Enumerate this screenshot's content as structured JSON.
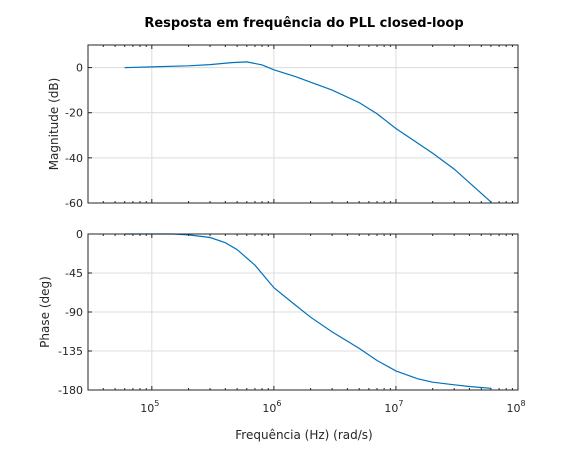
{
  "chart_data": [
    {
      "type": "line",
      "title": "Resposta em frequência do PLL closed-loop",
      "ylabel": "Magnitude (dB)",
      "xlabel": "",
      "xscale": "log",
      "xlim": [
        30000,
        100000000
      ],
      "ylim": [
        -60,
        10
      ],
      "yticks": [
        0,
        -20,
        -40,
        -60
      ],
      "grid": true,
      "color": "#0072BD",
      "series": [
        {
          "x": [
            60000,
            100000,
            200000,
            300000,
            450000,
            600000,
            800000,
            1000000,
            1500000,
            2000000,
            3000000,
            5000000,
            7000000,
            10000000,
            20000000,
            30000000,
            60000000
          ],
          "y": [
            0,
            0.3,
            0.8,
            1.3,
            2.2,
            2.5,
            1.2,
            -1,
            -4,
            -6.5,
            -10,
            -15.5,
            -20.5,
            -27,
            -38,
            -45,
            -59.5
          ]
        }
      ]
    },
    {
      "type": "line",
      "ylabel": "Phase (deg)",
      "xlabel": "Frequência (Hz) (rad/s)",
      "xscale": "log",
      "xlim": [
        30000,
        100000000
      ],
      "ylim": [
        -180,
        0
      ],
      "yticks": [
        0,
        -45,
        -90,
        -135,
        -180
      ],
      "xticks": [
        100000,
        1000000,
        10000000,
        100000000
      ],
      "xtick_labels": [
        {
          "base": "10",
          "exp": "5"
        },
        {
          "base": "10",
          "exp": "6"
        },
        {
          "base": "10",
          "exp": "7"
        },
        {
          "base": "10",
          "exp": "8"
        }
      ],
      "grid": true,
      "color": "#0072BD",
      "series": [
        {
          "x": [
            60000,
            100000,
            150000,
            200000,
            300000,
            400000,
            500000,
            700000,
            1000000,
            1500000,
            2000000,
            3000000,
            5000000,
            7000000,
            10000000,
            15000000,
            20000000,
            30000000,
            40000000,
            60000000
          ],
          "y": [
            0,
            0,
            0,
            -1,
            -4,
            -10,
            -18,
            -36,
            -62,
            -82,
            -96,
            -113,
            -132,
            -146,
            -158,
            -167,
            -171,
            -174,
            -176,
            -178
          ]
        }
      ]
    }
  ]
}
